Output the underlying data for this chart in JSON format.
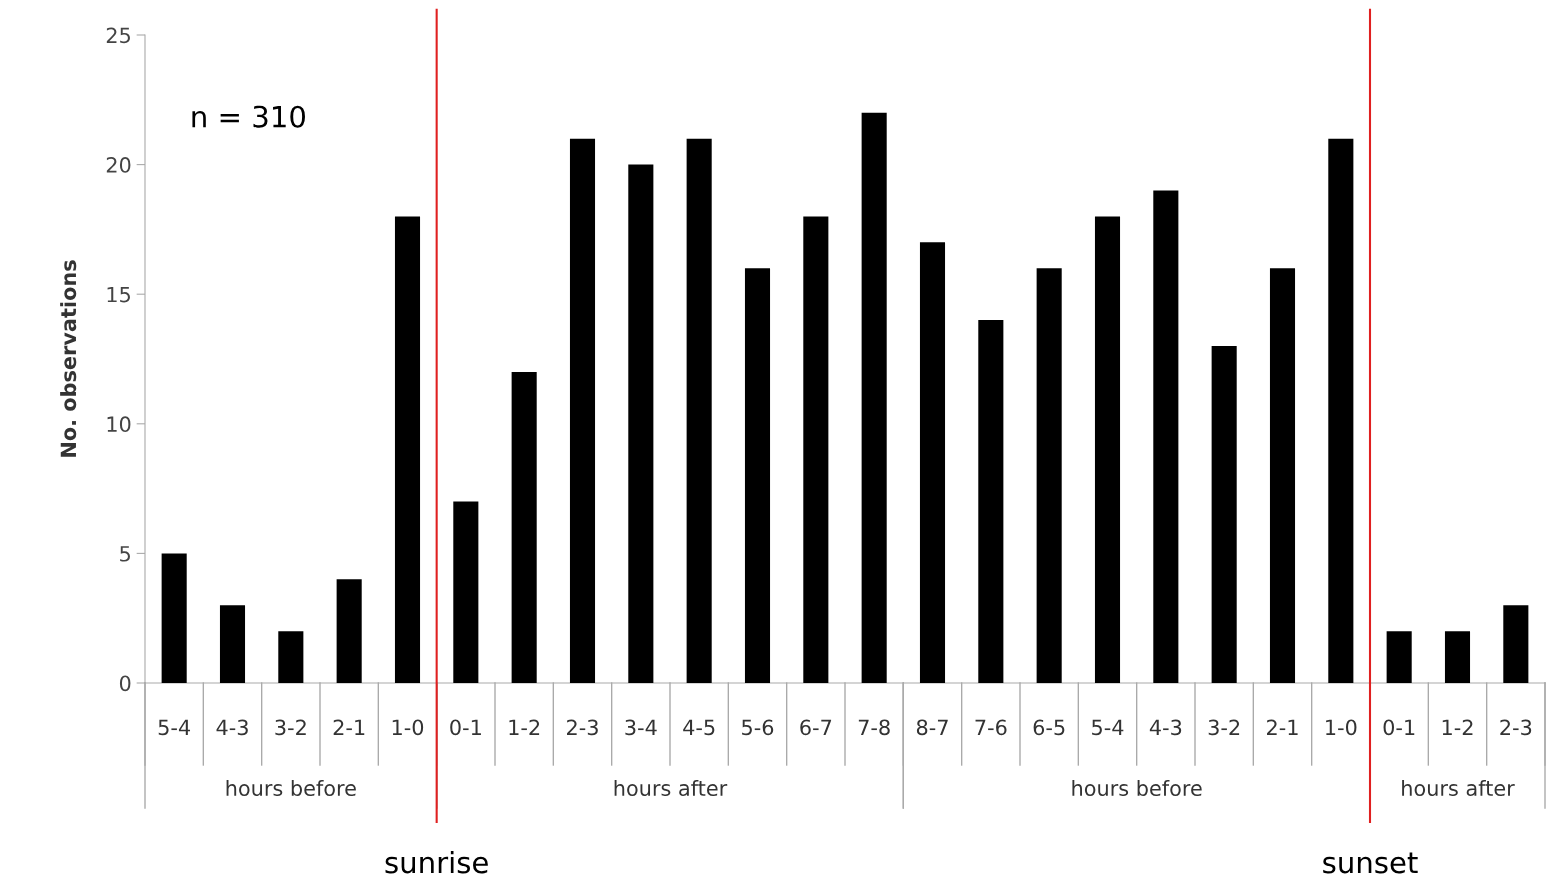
{
  "chart_data": {
    "type": "bar",
    "ylabel": "No. observations",
    "categories": [
      "5-4",
      "4-3",
      "3-2",
      "2-1",
      "1-0",
      "0-1",
      "1-2",
      "2-3",
      "3-4",
      "4-5",
      "5-6",
      "6-7",
      "7-8",
      "8-7",
      "7-6",
      "6-5",
      "5-4",
      "4-3",
      "3-2",
      "2-1",
      "1-0",
      "0-1",
      "1-2",
      "2-3"
    ],
    "values": [
      5,
      3,
      2,
      4,
      18,
      7,
      12,
      21,
      20,
      21,
      16,
      18,
      22,
      17,
      14,
      16,
      18,
      19,
      13,
      16,
      21,
      2,
      2,
      3
    ],
    "color": "#000000",
    "ylim": [
      0,
      25
    ],
    "yticks": [
      0,
      5,
      10,
      15,
      20,
      25
    ],
    "grid": false,
    "annotations": [
      "n = 310",
      "hours before",
      "hours after",
      "hours before",
      "hours after",
      "sunrise",
      "sunset"
    ]
  }
}
